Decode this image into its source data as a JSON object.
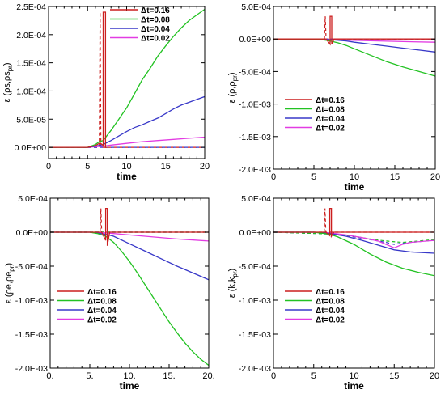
{
  "chart_data": [
    {
      "type": "line",
      "xlabel": "time",
      "ylabel": "ε (ρs,ρs_pr)",
      "ylabel_main": "ε (ρs,ρs",
      "ylabel_sub": "pr",
      "ylabel_close": ")",
      "xlim": [
        0,
        20
      ],
      "ylim": [
        -2e-05,
        0.00025
      ],
      "xticks": [
        0,
        5,
        10,
        15,
        20
      ],
      "xtick_labels": [
        "0",
        "5",
        "10",
        "15",
        "20"
      ],
      "yticks": [
        0,
        5e-05,
        0.0001,
        0.00015,
        0.0002,
        0.00025
      ],
      "ytick_labels": [
        "0.0E+00",
        "5.0E-05",
        "1.0E-04",
        "1.5E-04",
        "2.0E-04",
        "2.5E-04"
      ],
      "legend_position": "top-right",
      "series": [
        {
          "name": "Δt=0.16",
          "color": "#cc1f1f",
          "x": [
            0,
            5,
            6,
            6.6,
            7.0,
            7.0,
            7.3,
            7.3,
            7.5
          ],
          "y": [
            0,
            0,
            3e-06,
            8e-06,
            3e-06,
            0.00024,
            0.00024,
            0,
            0
          ]
        },
        {
          "name": "Δt=0.08",
          "color": "#22c222",
          "x": [
            0,
            5,
            6,
            6.5,
            7,
            8,
            9,
            10,
            11,
            12,
            13,
            14,
            15,
            16,
            17,
            18,
            19,
            20
          ],
          "y": [
            0,
            0,
            5e-06,
            1e-05,
            1.2e-05,
            3e-05,
            5e-05,
            7e-05,
            9.5e-05,
            0.00012,
            0.00014,
            0.000162,
            0.00018,
            0.000197,
            0.000212,
            0.000225,
            0.000235,
            0.000245
          ]
        },
        {
          "name": "Δt=0.04",
          "color": "#3838c8",
          "x": [
            0,
            5,
            6,
            7,
            8,
            9,
            10,
            11,
            12,
            13,
            14,
            15,
            16,
            17,
            18,
            19,
            20
          ],
          "y": [
            0,
            0,
            2e-06,
            5e-06,
            1.2e-05,
            2e-05,
            2.8e-05,
            3.5e-05,
            4e-05,
            4.6e-05,
            5.2e-05,
            6e-05,
            6.8e-05,
            7.5e-05,
            8e-05,
            8.5e-05,
            9e-05
          ]
        },
        {
          "name": "Δt=0.02",
          "color": "#e23ce2",
          "x": [
            0,
            5,
            6,
            7,
            8,
            10,
            12,
            14,
            16,
            18,
            20
          ],
          "y": [
            0,
            0,
            1e-06,
            2e-06,
            4e-06,
            7e-06,
            1e-05,
            1.2e-05,
            1.4e-05,
            1.6e-05,
            1.8e-05
          ]
        }
      ],
      "dashed": [
        {
          "color": "#cc1f1f",
          "x": [
            0,
            6.5,
            6.6,
            6.6,
            6.7,
            20
          ],
          "y": [
            0,
            0,
            0.00024,
            0.00024,
            0,
            0
          ]
        },
        {
          "color": "#3838c8",
          "x": [
            0,
            20
          ],
          "y": [
            0,
            0
          ]
        }
      ]
    },
    {
      "type": "line",
      "xlabel": "time",
      "ylabel": "ε (ρ,ρ_pr)",
      "ylabel_main": "ε (ρ,ρ",
      "ylabel_sub": "pr",
      "ylabel_close": ")",
      "xlim": [
        0,
        20
      ],
      "ylim": [
        -0.002,
        0.0005
      ],
      "xticks": [
        0,
        5,
        10,
        15,
        20
      ],
      "xtick_labels": [
        "0",
        "5",
        "10",
        "15",
        "20"
      ],
      "yticks": [
        0.0005,
        0,
        -0.0005,
        -0.001,
        -0.0015,
        -0.002
      ],
      "ytick_labels": [
        "5.0E-04",
        "0.0E+00",
        "-5.0E-04",
        "-1.0E-03",
        "-1.5E-03",
        "-2.0E-03"
      ],
      "legend_position": "center-left",
      "series": [
        {
          "name": "Δt=0.16",
          "color": "#cc1f1f",
          "x": [
            0,
            6.5,
            7.0,
            7.0,
            7.2,
            7.2,
            7.5,
            20
          ],
          "y": [
            0,
            0,
            -8e-05,
            0.00035,
            0.00035,
            -8e-05,
            0,
            0
          ]
        },
        {
          "name": "Δt=0.08",
          "color": "#22c222",
          "x": [
            0,
            5,
            6,
            7,
            8,
            9,
            10,
            12,
            14,
            16,
            18,
            20
          ],
          "y": [
            0,
            0,
            -1e-05,
            -3e-05,
            -6e-05,
            -0.0001,
            -0.00015,
            -0.00025,
            -0.00035,
            -0.00043,
            -0.0005,
            -0.00057
          ]
        },
        {
          "name": "Δt=0.04",
          "color": "#3838c8",
          "x": [
            0,
            5,
            7,
            9,
            10,
            12,
            14,
            16,
            18,
            20
          ],
          "y": [
            0,
            0,
            -1e-05,
            -3e-05,
            -5e-05,
            -8e-05,
            -0.00011,
            -0.00014,
            -0.00017,
            -0.0002
          ]
        },
        {
          "name": "Δt=0.02",
          "color": "#e23ce2",
          "x": [
            0,
            5,
            7,
            10,
            13,
            16,
            20
          ],
          "y": [
            0,
            0,
            -1e-05,
            -2e-05,
            -3e-05,
            -4e-05,
            -5e-05
          ]
        }
      ],
      "dashed": [
        {
          "color": "#cc1f1f",
          "x": [
            0,
            6.3,
            6.4,
            6.4,
            6.5,
            20
          ],
          "y": [
            0,
            0,
            0.00035,
            0.00035,
            0,
            0
          ]
        },
        {
          "color": "#3838c8",
          "x": [
            0,
            20
          ],
          "y": [
            0,
            0
          ]
        }
      ]
    },
    {
      "type": "line",
      "xlabel": "time",
      "ylabel": "ε (ρe,ρe_pr)",
      "ylabel_main": "ε (ρe,ρe",
      "ylabel_sub": "pr",
      "ylabel_close": ")",
      "xlim": [
        0,
        20
      ],
      "ylim": [
        -0.002,
        0.0005
      ],
      "xticks": [
        0,
        5,
        10,
        15,
        20
      ],
      "xtick_labels": [
        "0.",
        "5.",
        "10.",
        "15.",
        "20."
      ],
      "yticks": [
        0.0005,
        0,
        -0.0005,
        -0.001,
        -0.0015,
        -0.002
      ],
      "ytick_labels": [
        "5.0E-04",
        "0.0E+00",
        "-5.0E-04",
        "-1.0E-03",
        "-1.5E-03",
        "-2.0E-03"
      ],
      "legend_position": "center-left",
      "series": [
        {
          "name": "Δt=0.16",
          "color": "#cc1f1f",
          "x": [
            0,
            6.5,
            7.0,
            7.0,
            7.2,
            7.2,
            7.5,
            20
          ],
          "y": [
            0,
            0,
            -0.00012,
            0.00035,
            0.00035,
            -0.0002,
            0,
            0
          ]
        },
        {
          "name": "Δt=0.08",
          "color": "#22c222",
          "x": [
            0,
            5,
            6,
            7,
            8,
            9,
            10,
            11,
            12,
            13,
            14,
            15,
            16,
            17,
            18,
            19,
            20
          ],
          "y": [
            0,
            0,
            -2e-05,
            -6e-05,
            -0.00015,
            -0.00028,
            -0.00043,
            -0.0006,
            -0.00078,
            -0.00096,
            -0.00114,
            -0.00132,
            -0.00148,
            -0.00163,
            -0.00176,
            -0.00187,
            -0.00196
          ]
        },
        {
          "name": "Δt=0.04",
          "color": "#3838c8",
          "x": [
            0,
            5,
            7,
            8,
            10,
            12,
            14,
            16,
            18,
            20
          ],
          "y": [
            0,
            0,
            -3e-05,
            -6e-05,
            -0.00017,
            -0.00028,
            -0.00039,
            -0.0005,
            -0.0006,
            -0.0007
          ]
        },
        {
          "name": "Δt=0.02",
          "color": "#e23ce2",
          "x": [
            0,
            5,
            7,
            10,
            13,
            16,
            20
          ],
          "y": [
            0,
            0,
            -1e-05,
            -4e-05,
            -7e-05,
            -0.0001,
            -0.00013
          ]
        }
      ],
      "dashed": [
        {
          "color": "#cc1f1f",
          "x": [
            0,
            6.3,
            6.4,
            6.4,
            6.5,
            20
          ],
          "y": [
            0,
            0,
            0.00035,
            0.00035,
            0,
            0
          ]
        },
        {
          "color": "#3838c8",
          "x": [
            0,
            20
          ],
          "y": [
            0,
            0
          ]
        },
        {
          "color": "#22c222",
          "x": [
            0,
            20
          ],
          "y": [
            0,
            0
          ]
        }
      ]
    },
    {
      "type": "line",
      "xlabel": "time",
      "ylabel": "ε (k,k_pr)",
      "ylabel_main": "ε (k,k",
      "ylabel_sub": "pr",
      "ylabel_close": ")",
      "xlim": [
        0,
        20
      ],
      "ylim": [
        -0.002,
        0.0005
      ],
      "xticks": [
        0,
        5,
        10,
        15,
        20
      ],
      "xtick_labels": [
        "0",
        "5",
        "10",
        "15",
        "20"
      ],
      "yticks": [
        0.0005,
        0,
        -0.0005,
        -0.001,
        -0.0015,
        -0.002
      ],
      "ytick_labels": [
        "5.0E-04",
        "0.0E+00",
        "-5.0E-04",
        "-1.0E-03",
        "-1.5E-03",
        "-2.0E-03"
      ],
      "legend_position": "center-left",
      "series": [
        {
          "name": "Δt=0.16",
          "color": "#cc1f1f",
          "x": [
            0,
            6.5,
            7.0,
            7.0,
            7.2,
            7.2,
            7.5,
            20
          ],
          "y": [
            0,
            0,
            -5e-05,
            0.00035,
            0.00035,
            -6e-05,
            0,
            0
          ]
        },
        {
          "name": "Δt=0.08",
          "color": "#22c222",
          "x": [
            0,
            5,
            7,
            8,
            10,
            12,
            14,
            16,
            18,
            20
          ],
          "y": [
            0,
            0,
            -3e-05,
            -7e-05,
            -0.00018,
            -0.00032,
            -0.00044,
            -0.00053,
            -0.00059,
            -0.00064
          ]
        },
        {
          "name": "Δt=0.04",
          "color": "#3838c8",
          "x": [
            0,
            5,
            7,
            9,
            11,
            13,
            15,
            17,
            20
          ],
          "y": [
            0,
            0,
            -2e-05,
            -6e-05,
            -0.00012,
            -0.00019,
            -0.00026,
            -0.00029,
            -0.00031
          ]
        },
        {
          "name": "Δt=0.02",
          "color": "#e23ce2",
          "x": [
            0,
            5,
            7,
            9,
            11,
            13,
            14,
            15,
            16,
            17,
            20
          ],
          "y": [
            0,
            0,
            -1e-05,
            -4e-05,
            -8e-05,
            -0.00013,
            -0.00018,
            -0.00023,
            -0.00018,
            -0.00015,
            -0.00012
          ]
        }
      ],
      "dashed": [
        {
          "color": "#cc1f1f",
          "x": [
            0,
            6.3,
            6.4,
            6.4,
            6.5,
            20
          ],
          "y": [
            0,
            0,
            0.00035,
            0.00035,
            0,
            0
          ]
        },
        {
          "color": "#3838c8",
          "x": [
            0,
            8,
            10,
            12,
            14,
            15,
            16,
            18,
            20
          ],
          "y": [
            0,
            -3e-05,
            -7e-05,
            -0.00011,
            -0.00015,
            -0.00018,
            -0.00016,
            -0.00014,
            -0.00012
          ]
        },
        {
          "color": "#22c222",
          "x": [
            0,
            8,
            10,
            12,
            14,
            16,
            18,
            20
          ],
          "y": [
            0,
            -3e-05,
            -6e-05,
            -0.0001,
            -0.00013,
            -0.00015,
            -0.00013,
            -0.00011
          ]
        }
      ]
    }
  ]
}
